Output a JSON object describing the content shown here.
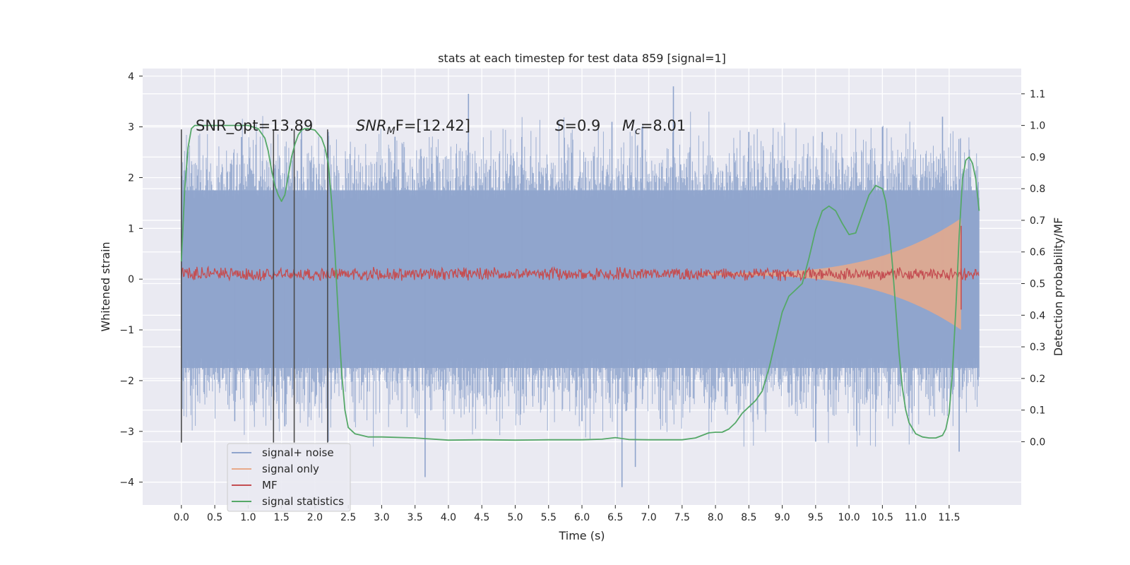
{
  "chart_data": {
    "type": "line",
    "title": "stats at each timestep for test data 859 [signal=1]",
    "xlabel": "Time (s)",
    "ylabel_left": "Whitened strain",
    "ylabel_right": "Detection probability/MF",
    "xlim": [
      -0.58,
      12.58
    ],
    "ylim_left": [
      -4.45,
      4.15
    ],
    "ylim_right": [
      -0.2,
      1.18
    ],
    "grid": true,
    "x_ticks": [
      0.0,
      0.5,
      1.0,
      1.5,
      2.0,
      2.5,
      3.0,
      3.5,
      4.0,
      4.5,
      5.0,
      5.5,
      6.0,
      6.5,
      7.0,
      7.5,
      8.0,
      8.5,
      9.0,
      9.5,
      10.0,
      10.5,
      11.0,
      11.5
    ],
    "x_tick_labels": [
      "0.0",
      "0.5",
      "1.0",
      "1.5",
      "2.0",
      "2.5",
      "3.0",
      "3.5",
      "4.0",
      "4.5",
      "5.0",
      "5.5",
      "6.0",
      "6.5",
      "7.0",
      "7.5",
      "8.0",
      "8.5",
      "9.0",
      "9.5",
      "10.0",
      "10.5",
      "11.0",
      "11.5"
    ],
    "y_left_ticks": [
      -4,
      -3,
      -2,
      -1,
      0,
      1,
      2,
      3,
      4
    ],
    "y_left_tick_labels": [
      "−4",
      "−3",
      "−2",
      "−1",
      "0",
      "1",
      "2",
      "3",
      "4"
    ],
    "y_right_ticks": [
      0.0,
      0.1,
      0.2,
      0.3,
      0.4,
      0.5,
      0.6,
      0.7,
      0.8,
      0.9,
      1.0,
      1.1
    ],
    "y_right_tick_labels": [
      "0.0",
      "0.1",
      "0.2",
      "0.3",
      "0.4",
      "0.5",
      "0.6",
      "0.7",
      "0.8",
      "0.9",
      "1.0",
      "1.1"
    ],
    "annotations": {
      "snr_opt": "SNR_opt=13.89",
      "snr_mf_main": "SNR",
      "snr_mf_sub": "M",
      "snr_mf_rest": "F=[12.42]",
      "s_main": "S",
      "s_rest": "=0.9",
      "mc_main": "M",
      "mc_sub": "c",
      "mc_rest": "=8.01"
    },
    "vertical_lines_x": [
      0.0,
      1.38,
      1.69,
      2.19
    ],
    "vertical_lines_range": [
      -3.22,
      2.95
    ],
    "legend_position": "lower-left",
    "series": [
      {
        "name": "signal+ noise",
        "axis": "left",
        "color": "#8fa4cc",
        "description_envelope": {
          "t_range": [
            0.0,
            11.95
          ],
          "dense_band": [
            -1.75,
            1.75
          ],
          "peaks_up": [
            [
              0.9,
              2.8
            ],
            [
              1.8,
              3.0
            ],
            [
              2.2,
              2.9
            ],
            [
              3.2,
              2.8
            ],
            [
              4.3,
              3.65
            ],
            [
              5.1,
              2.8
            ],
            [
              6.45,
              3.1
            ],
            [
              6.9,
              3.0
            ],
            [
              7.37,
              3.8
            ],
            [
              8.5,
              2.9
            ],
            [
              9.6,
              2.9
            ],
            [
              10.5,
              3.0
            ],
            [
              11.4,
              3.2
            ]
          ],
          "peaks_down": [
            [
              0.8,
              -2.8
            ],
            [
              1.55,
              -2.9
            ],
            [
              2.2,
              -3.2
            ],
            [
              3.65,
              -3.9
            ],
            [
              6.0,
              -2.8
            ],
            [
              6.6,
              -4.1
            ],
            [
              6.8,
              -3.7
            ],
            [
              9.5,
              -3.2
            ],
            [
              11.65,
              -3.4
            ]
          ]
        }
      },
      {
        "name": "signal only",
        "axis": "left",
        "color": "#e8a98a",
        "chirp": {
          "t_start": 7.8,
          "t_peak": 11.68,
          "amp_peak": 1.1,
          "amp_start": 0.02
        }
      },
      {
        "name": "MF",
        "axis": "left",
        "color": "#c44e52",
        "band": {
          "center": 0.1,
          "half_width": 0.12
        }
      },
      {
        "name": "signal statistics",
        "axis": "right",
        "color": "#55a868",
        "x": [
          0.0,
          0.05,
          0.1,
          0.15,
          0.2,
          0.3,
          0.5,
          0.8,
          1.0,
          1.15,
          1.25,
          1.3,
          1.35,
          1.4,
          1.45,
          1.5,
          1.55,
          1.6,
          1.65,
          1.7,
          1.75,
          1.8,
          1.85,
          1.9,
          2.0,
          2.1,
          2.15,
          2.2,
          2.25,
          2.3,
          2.35,
          2.4,
          2.45,
          2.5,
          2.6,
          2.8,
          3.0,
          3.5,
          4.0,
          4.5,
          5.0,
          5.5,
          6.0,
          6.3,
          6.5,
          6.7,
          7.0,
          7.5,
          7.7,
          7.9,
          8.0,
          8.1,
          8.2,
          8.3,
          8.4,
          8.5,
          8.6,
          8.7,
          8.8,
          8.9,
          9.0,
          9.1,
          9.2,
          9.3,
          9.4,
          9.5,
          9.6,
          9.7,
          9.8,
          9.9,
          10.0,
          10.1,
          10.2,
          10.3,
          10.4,
          10.5,
          10.55,
          10.6,
          10.65,
          10.7,
          10.75,
          10.8,
          10.85,
          10.9,
          11.0,
          11.1,
          11.2,
          11.3,
          11.4,
          11.45,
          11.5,
          11.55,
          11.6,
          11.65,
          11.7,
          11.75,
          11.8,
          11.85,
          11.9,
          11.95
        ],
        "y": [
          0.57,
          0.8,
          0.93,
          0.99,
          1.0,
          1.0,
          1.0,
          1.0,
          1.0,
          0.99,
          0.96,
          0.92,
          0.86,
          0.81,
          0.78,
          0.76,
          0.78,
          0.84,
          0.9,
          0.94,
          0.97,
          0.985,
          0.99,
          0.99,
          0.985,
          0.96,
          0.93,
          0.88,
          0.76,
          0.6,
          0.4,
          0.22,
          0.1,
          0.045,
          0.025,
          0.015,
          0.015,
          0.012,
          0.005,
          0.006,
          0.005,
          0.006,
          0.006,
          0.008,
          0.013,
          0.007,
          0.006,
          0.006,
          0.012,
          0.028,
          0.03,
          0.03,
          0.04,
          0.06,
          0.09,
          0.11,
          0.13,
          0.16,
          0.23,
          0.32,
          0.41,
          0.46,
          0.48,
          0.5,
          0.58,
          0.67,
          0.73,
          0.745,
          0.73,
          0.69,
          0.655,
          0.66,
          0.72,
          0.78,
          0.81,
          0.8,
          0.76,
          0.68,
          0.56,
          0.42,
          0.28,
          0.17,
          0.1,
          0.06,
          0.025,
          0.015,
          0.012,
          0.012,
          0.02,
          0.04,
          0.09,
          0.22,
          0.42,
          0.65,
          0.83,
          0.89,
          0.9,
          0.88,
          0.83,
          0.73
        ]
      }
    ]
  }
}
